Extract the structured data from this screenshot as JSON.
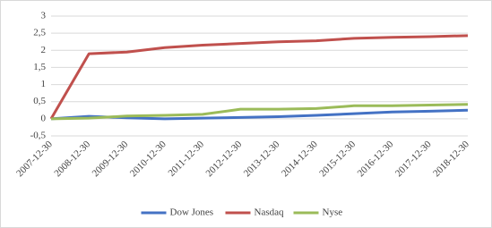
{
  "chart_data": {
    "type": "line",
    "categories": [
      "2007-12-30",
      "2008-12-30",
      "2009-12-30",
      "2010-12-30",
      "2011-12-30",
      "2012-12-30",
      "2013-12-30",
      "2014-12-30",
      "2015-12-30",
      "2016-12-30",
      "2017-12-30",
      "2018-12-30"
    ],
    "series": [
      {
        "name": "Dow Jones",
        "color": "#4472c4",
        "values": [
          0,
          0.07,
          0.03,
          0,
          0.02,
          0.04,
          0.06,
          0.1,
          0.15,
          0.2,
          0.22,
          0.25
        ]
      },
      {
        "name": "Nasdaq",
        "color": "#c0504d",
        "values": [
          0,
          1.9,
          1.95,
          2.08,
          2.15,
          2.2,
          2.25,
          2.28,
          2.35,
          2.38,
          2.4,
          2.43
        ]
      },
      {
        "name": "Nyse",
        "color": "#9bbb59",
        "values": [
          0,
          0.02,
          0.08,
          0.1,
          0.13,
          0.28,
          0.28,
          0.3,
          0.38,
          0.38,
          0.4,
          0.42
        ]
      }
    ],
    "ylim": [
      -0.5,
      3
    ],
    "yticks": [
      {
        "value": -0.5,
        "label": "-0,5"
      },
      0,
      {
        "value": 0.5,
        "label": "0,5"
      },
      1,
      {
        "value": 1.5,
        "label": "1,5"
      },
      2,
      {
        "value": 2.5,
        "label": "2,5"
      },
      3
    ],
    "grid": true,
    "legend": "bottom"
  }
}
